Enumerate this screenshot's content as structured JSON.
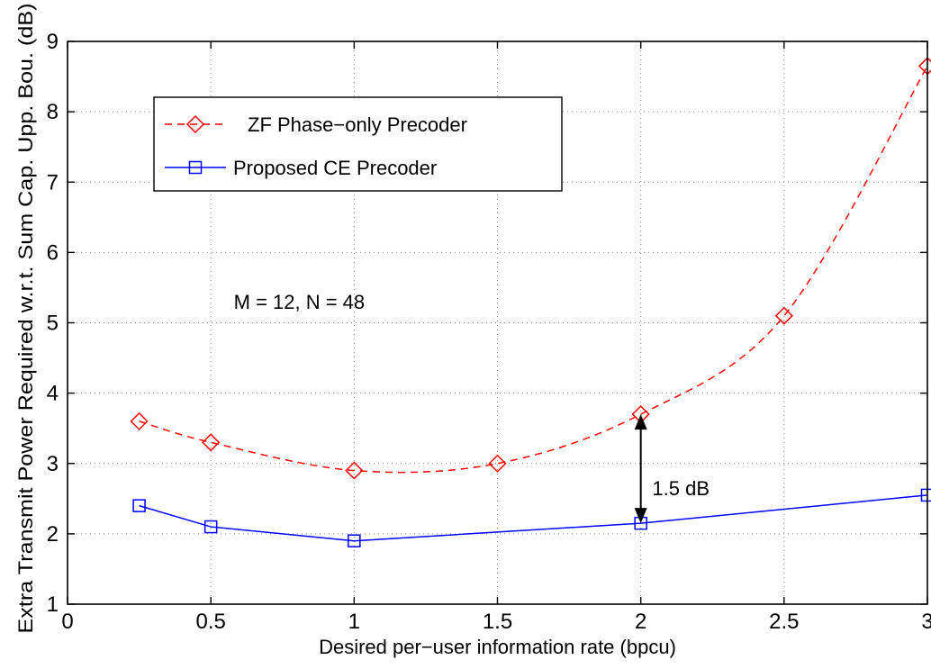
{
  "chart_data": {
    "type": "line",
    "xlabel": "Desired per−user information rate (bpcu)",
    "ylabel": "Extra Transmit Power Required w.r.t. Sum Cap. Upp. Bou. (dB)",
    "xlim": [
      0,
      3
    ],
    "ylim": [
      1,
      9
    ],
    "xticks": [
      0,
      0.5,
      1,
      1.5,
      2,
      2.5,
      3
    ],
    "xtick_labels": [
      "0",
      "0.5",
      "1",
      "1.5",
      "2",
      "2.5",
      "3"
    ],
    "yticks": [
      1,
      2,
      3,
      4,
      5,
      6,
      7,
      8,
      9
    ],
    "ytick_labels": [
      "1",
      "2",
      "3",
      "4",
      "5",
      "6",
      "7",
      "8",
      "9"
    ],
    "grid": true,
    "legend_position": "upper-left",
    "series": [
      {
        "name": "ZF Phase−only Precoder",
        "color": "#ff0000",
        "line_style": "dashed",
        "marker": "diamond",
        "x": [
          0.25,
          0.5,
          1,
          1.5,
          2,
          2.5,
          3
        ],
        "y": [
          3.6,
          3.3,
          2.9,
          3.0,
          3.7,
          5.1,
          8.65
        ]
      },
      {
        "name": "Proposed CE Precoder",
        "color": "#0000ff",
        "line_style": "solid",
        "marker": "square",
        "x": [
          0.25,
          0.5,
          1,
          2,
          3
        ],
        "y": [
          2.4,
          2.1,
          1.9,
          2.15,
          2.55
        ]
      }
    ],
    "annotations": [
      {
        "text": "M = 12,  N = 48",
        "x": 0.58,
        "y": 5.3
      },
      {
        "text": "1.5 dB",
        "x": 2.04,
        "y": 2.65,
        "arrow_x": 2,
        "arrow_from": 2.15,
        "arrow_to": 3.7
      }
    ]
  }
}
